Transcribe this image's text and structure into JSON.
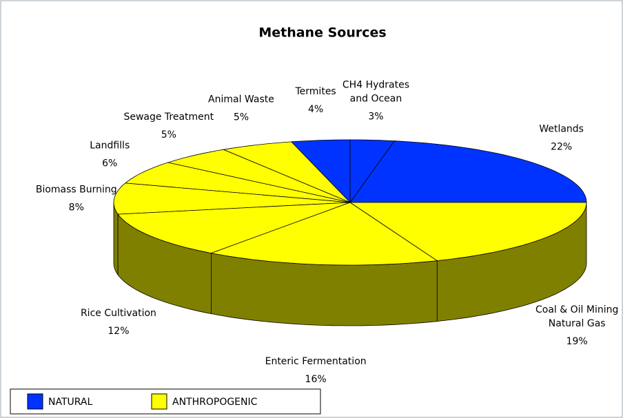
{
  "chart_data": {
    "type": "pie3d",
    "title": "Methane Sources",
    "categories": [
      [
        "Wetlands"
      ],
      [
        "CH4 Hydrates",
        "and Ocean"
      ],
      [
        "Termites"
      ],
      [
        "Animal Waste"
      ],
      [
        "Sewage Treatment"
      ],
      [
        "Landfills"
      ],
      [
        "Biomass Burning"
      ],
      [
        "Rice Cultivation"
      ],
      [
        "Enteric Fermentation"
      ],
      [
        "Coal & Oil Mining",
        "Natural Gas"
      ]
    ],
    "values": [
      22,
      3,
      4,
      5,
      5,
      6,
      8,
      12,
      16,
      19
    ],
    "value_labels": [
      "22%",
      "3%",
      "4%",
      "5%",
      "5%",
      "6%",
      "8%",
      "12%",
      "16%",
      "19%"
    ],
    "colors": [
      "#0033ff",
      "#0033ff",
      "#0033ff",
      "#ffff00",
      "#ffff00",
      "#ffff00",
      "#ffff00",
      "#ffff00",
      "#ffff00",
      "#ffff00"
    ],
    "legend": [
      {
        "name": "NATURAL",
        "color": "#0033ff"
      },
      {
        "name": "ANTHROPOGENIC",
        "color": "#ffff00"
      }
    ]
  }
}
